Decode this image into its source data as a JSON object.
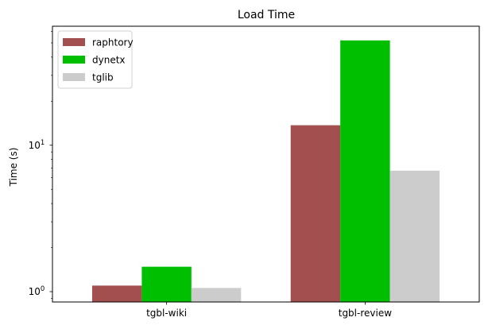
{
  "chart_data": {
    "type": "bar",
    "title": "Load Time",
    "ylabel": "Time (s)",
    "xlabel": "",
    "yscale": "log",
    "ylim": [
      0.85,
      65
    ],
    "yticks": [
      {
        "value": 1,
        "base": "10",
        "exp": "0"
      },
      {
        "value": 10,
        "base": "10",
        "exp": "1"
      }
    ],
    "categories": [
      "tgbl-wiki",
      "tgbl-review"
    ],
    "series": [
      {
        "name": "raphtory",
        "color": "#a44f4f",
        "values": [
          1.1,
          13.7
        ]
      },
      {
        "name": "dynetx",
        "color": "#00bf00",
        "values": [
          1.48,
          52
        ]
      },
      {
        "name": "tglib",
        "color": "#cccccc",
        "values": [
          1.06,
          6.7
        ]
      }
    ],
    "legend": "top-left",
    "grid": false
  }
}
